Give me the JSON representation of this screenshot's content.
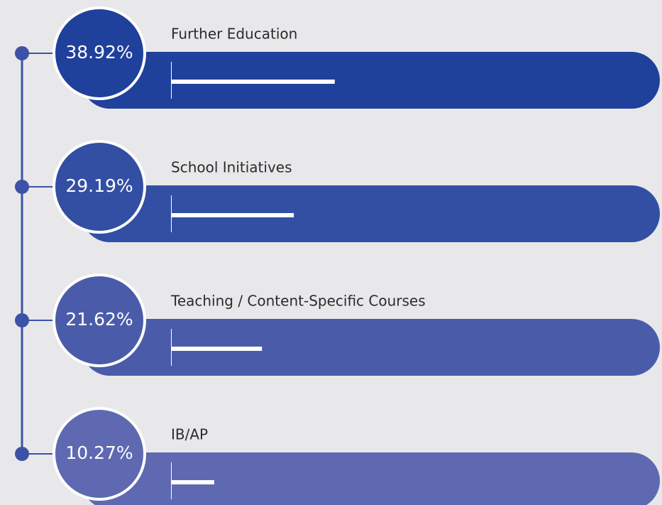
{
  "chart_data": {
    "type": "bar",
    "categories": [
      "Further Education",
      "School Initiatives",
      "Teaching / Content-Specific Courses",
      "IB/AP"
    ],
    "values": [
      38.92,
      29.19,
      21.62,
      10.27
    ],
    "value_labels": [
      "38.92%",
      "29.19%",
      "21.62%",
      "10.27%"
    ],
    "colors": [
      "#1f409b",
      "#324fa3",
      "#4a5ca9",
      "#5e69b1"
    ]
  }
}
